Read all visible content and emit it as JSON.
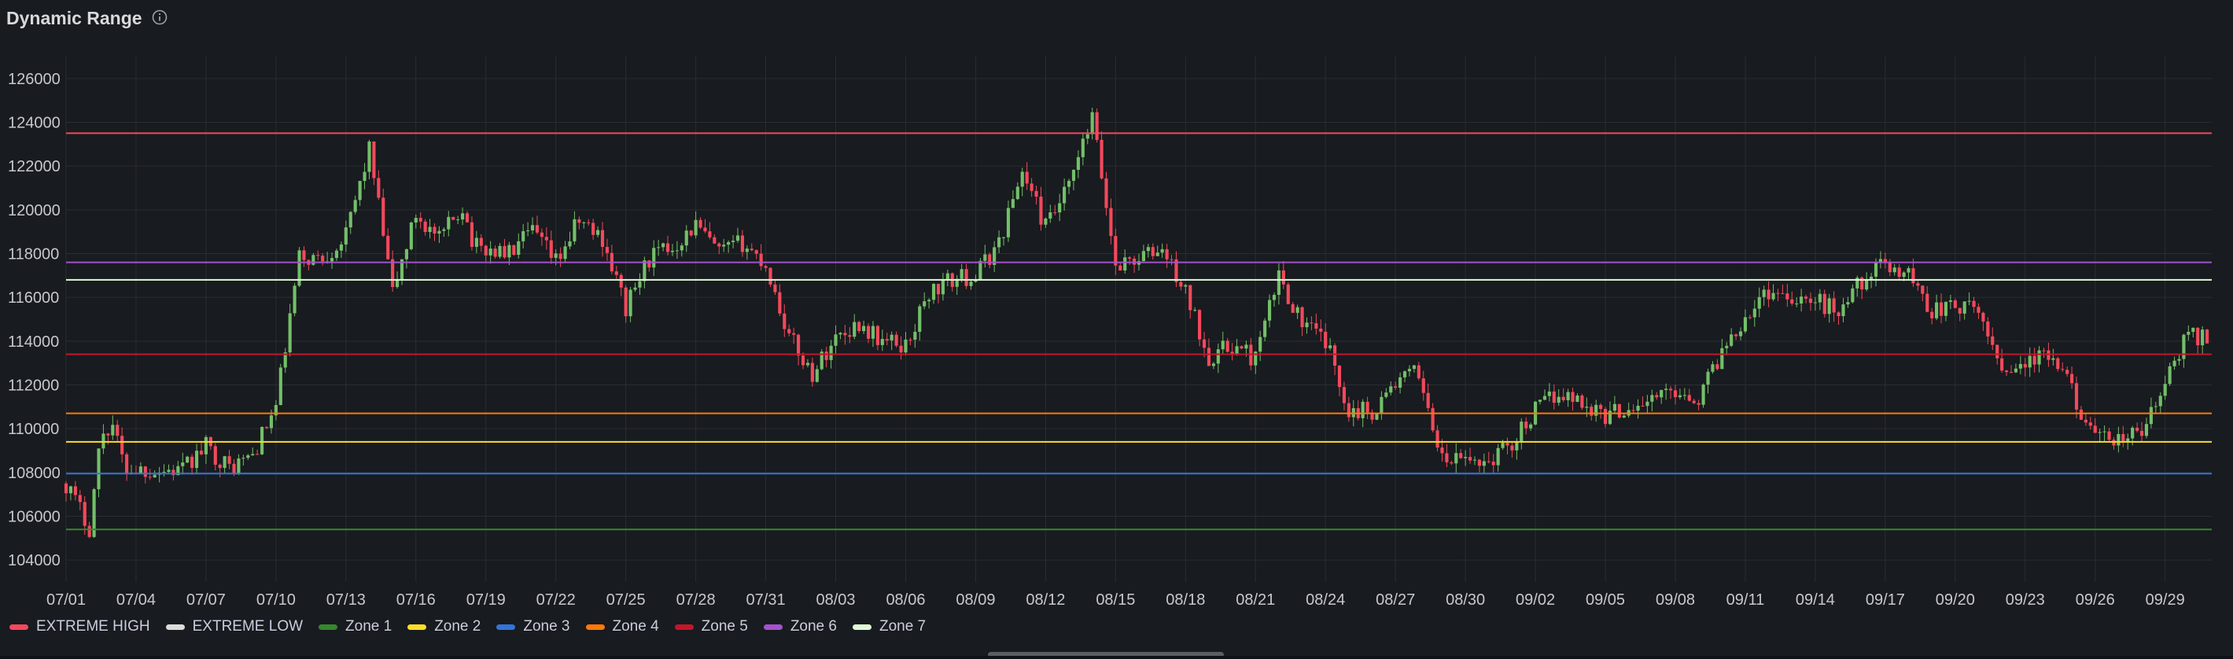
{
  "panel": {
    "title": "Dynamic Range",
    "info_icon": "info-icon"
  },
  "colors": {
    "background": "#181b1f",
    "grid": "#2a2d33",
    "axis_text": "#c7c8cf",
    "candle_up": "#73bf69",
    "candle_down": "#f2495c"
  },
  "chart_data": {
    "type": "candlestick",
    "title": "Dynamic Range",
    "ylim": [
      103000,
      127000
    ],
    "yticks": [
      104000,
      106000,
      108000,
      110000,
      112000,
      114000,
      116000,
      118000,
      120000,
      122000,
      124000,
      126000
    ],
    "x_start": "07/01",
    "x_end": "09/30",
    "xticks": [
      "07/01",
      "07/04",
      "07/07",
      "07/10",
      "07/13",
      "07/16",
      "07/19",
      "07/22",
      "07/25",
      "07/28",
      "07/31",
      "08/03",
      "08/06",
      "08/09",
      "08/12",
      "08/15",
      "08/18",
      "08/21",
      "08/24",
      "08/27",
      "08/30",
      "09/02",
      "09/05",
      "09/08",
      "09/11",
      "09/14",
      "09/17",
      "09/20",
      "09/23",
      "09/26",
      "09/29"
    ],
    "grid": true,
    "legend_position": "bottom-left",
    "price_path": [
      [
        "07/01",
        107500
      ],
      [
        "07/02",
        105500
      ],
      [
        "07/02",
        109800
      ],
      [
        "07/03",
        110200
      ],
      [
        "07/03",
        108200
      ],
      [
        "07/05",
        108100
      ],
      [
        "07/06",
        108100
      ],
      [
        "07/07",
        109200
      ],
      [
        "07/08",
        108200
      ],
      [
        "07/09",
        108800
      ],
      [
        "07/10",
        111000
      ],
      [
        "07/11",
        117800
      ],
      [
        "07/12",
        117800
      ],
      [
        "07/13",
        118800
      ],
      [
        "07/14",
        122800
      ],
      [
        "07/14",
        119500
      ],
      [
        "07/15",
        116200
      ],
      [
        "07/16",
        119800
      ],
      [
        "07/17",
        118600
      ],
      [
        "07/18",
        120200
      ],
      [
        "07/18",
        118300
      ],
      [
        "07/20",
        118000
      ],
      [
        "07/21",
        119000
      ],
      [
        "07/22",
        117600
      ],
      [
        "07/23",
        119500
      ],
      [
        "07/24",
        118700
      ],
      [
        "07/25",
        115500
      ],
      [
        "07/26",
        117800
      ],
      [
        "07/27",
        118300
      ],
      [
        "07/28",
        119300
      ],
      [
        "07/29",
        118000
      ],
      [
        "07/30",
        118500
      ],
      [
        "07/31",
        117500
      ],
      [
        "08/01",
        114200
      ],
      [
        "08/02",
        112500
      ],
      [
        "08/03",
        114200
      ],
      [
        "08/04",
        114800
      ],
      [
        "08/05",
        114000
      ],
      [
        "08/06",
        113800
      ],
      [
        "08/07",
        116200
      ],
      [
        "08/08",
        116800
      ],
      [
        "08/09",
        117000
      ],
      [
        "08/10",
        118500
      ],
      [
        "08/11",
        121800
      ],
      [
        "08/12",
        119200
      ],
      [
        "08/13",
        121000
      ],
      [
        "08/14",
        124200
      ],
      [
        "08/15",
        117500
      ],
      [
        "08/16",
        117800
      ],
      [
        "08/17",
        118200
      ],
      [
        "08/18",
        116200
      ],
      [
        "08/19",
        113300
      ],
      [
        "08/20",
        113800
      ],
      [
        "08/21",
        113200
      ],
      [
        "08/22",
        117000
      ],
      [
        "08/23",
        114800
      ],
      [
        "08/24",
        114000
      ],
      [
        "08/25",
        110900
      ],
      [
        "08/26",
        110800
      ],
      [
        "08/27",
        112100
      ],
      [
        "08/28",
        112600
      ],
      [
        "08/29",
        108500
      ],
      [
        "08/30",
        108600
      ],
      [
        "08/31",
        108500
      ],
      [
        "09/01",
        109400
      ],
      [
        "09/02",
        110800
      ],
      [
        "09/03",
        111700
      ],
      [
        "09/04",
        111200
      ],
      [
        "09/05",
        110600
      ],
      [
        "09/06",
        111000
      ],
      [
        "09/07",
        111300
      ],
      [
        "09/08",
        111800
      ],
      [
        "09/09",
        111400
      ],
      [
        "09/10",
        113600
      ],
      [
        "09/11",
        115200
      ],
      [
        "09/12",
        116300
      ],
      [
        "09/13",
        116100
      ],
      [
        "09/14",
        115800
      ],
      [
        "09/15",
        115400
      ],
      [
        "09/16",
        116800
      ],
      [
        "09/17",
        117500
      ],
      [
        "09/18",
        117100
      ],
      [
        "09/19",
        115400
      ],
      [
        "09/20",
        115600
      ],
      [
        "09/21",
        115300
      ],
      [
        "09/22",
        112800
      ],
      [
        "09/23",
        113000
      ],
      [
        "09/24",
        113300
      ],
      [
        "09/25",
        111800
      ],
      [
        "09/26",
        109400
      ],
      [
        "09/27",
        109500
      ],
      [
        "09/28",
        109800
      ],
      [
        "09/29",
        112000
      ],
      [
        "09/30",
        114400
      ],
      [
        "09/30",
        114200
      ]
    ],
    "series": [
      {
        "name": "EXTREME HIGH",
        "color": "#f2495c",
        "value": 123500
      },
      {
        "name": "EXTREME LOW",
        "color": "#dcdcdc",
        "value": null
      },
      {
        "name": "Zone 1",
        "color": "#37872d",
        "value": 105400
      },
      {
        "name": "Zone 2",
        "color": "#fade2a",
        "value": 109400
      },
      {
        "name": "Zone 3",
        "color": "#3274d9",
        "value": 107950
      },
      {
        "name": "Zone 4",
        "color": "#ff780a",
        "value": 110700
      },
      {
        "name": "Zone 5",
        "color": "#c4162a",
        "value": 113400
      },
      {
        "name": "Zone 6",
        "color": "#a352cc",
        "value": 117600
      },
      {
        "name": "Zone 7",
        "color": "#e0f9d7",
        "value": 116800
      }
    ]
  }
}
